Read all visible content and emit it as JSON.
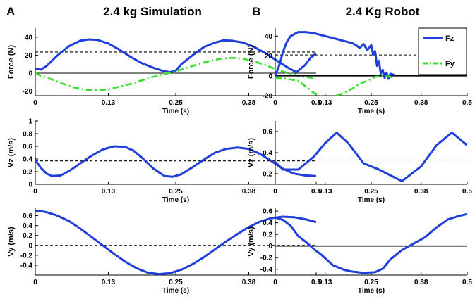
{
  "panels": {
    "a": {
      "letter": "A",
      "title": "2.4 kg Simulation"
    },
    "b": {
      "letter": "B",
      "title": "2.4 Kg Robot"
    }
  },
  "colors": {
    "fz": "#1f3fdc",
    "fy": "#33e02b",
    "ref": "#000000",
    "axis": "#000000"
  },
  "chart_data": [
    {
      "id": "sim-force",
      "type": "line",
      "panel": "A",
      "title": "2.4 kg Simulation",
      "xlabel": "Time (s)",
      "ylabel": "Force (N)",
      "xlim": [
        0,
        0.5
      ],
      "ylim": [
        -25,
        50
      ],
      "xticks": [
        0,
        0.13,
        0.25,
        0.38,
        0.5
      ],
      "xtick_labels": [
        "0",
        "0.13",
        "0.25",
        "0.38",
        "0.5"
      ],
      "yticks": [
        -20,
        0,
        20,
        40
      ],
      "ytick_labels": [
        "-20",
        "0",
        "20",
        "40"
      ],
      "zero_line": true,
      "ref_lines": [
        23.5
      ],
      "series": [
        {
          "name": "",
          "style": "solid",
          "color": "fz",
          "x": [
            0,
            0.01,
            0.02,
            0.04,
            0.06,
            0.08,
            0.095,
            0.11,
            0.13,
            0.15,
            0.17,
            0.19,
            0.21,
            0.225,
            0.24,
            0.25,
            0.26,
            0.28,
            0.3,
            0.32,
            0.335,
            0.35,
            0.37,
            0.39,
            0.41,
            0.43,
            0.45,
            0.465,
            0.48,
            0.49,
            0.5
          ],
          "y": [
            5,
            4,
            8,
            20,
            30,
            36,
            37.5,
            37,
            33,
            26,
            18,
            11,
            6,
            3,
            1,
            3,
            10,
            20,
            29,
            34,
            36.5,
            36,
            34,
            29,
            22,
            14,
            6,
            1,
            9,
            17,
            22
          ]
        },
        {
          "name": "",
          "style": "dashdot",
          "color": "fy",
          "x": [
            0,
            0.01,
            0.03,
            0.05,
            0.07,
            0.09,
            0.11,
            0.13,
            0.15,
            0.17,
            0.19,
            0.21,
            0.23,
            0.25,
            0.27,
            0.29,
            0.31,
            0.33,
            0.35,
            0.37,
            0.39,
            0.41,
            0.43,
            0.45,
            0.47,
            0.49,
            0.5
          ],
          "y": [
            0,
            -3,
            -7,
            -12,
            -16,
            -18.5,
            -19,
            -18,
            -15,
            -12,
            -8,
            -4,
            -1,
            2,
            6,
            10,
            13.5,
            16,
            17,
            16,
            13,
            9,
            4,
            0,
            -3,
            -5,
            -6
          ]
        }
      ]
    },
    {
      "id": "robot-force",
      "type": "line",
      "panel": "B",
      "title": "2.4 Kg Robot",
      "xlabel": "Time (s)",
      "ylabel": "Force (N)",
      "xlim": [
        0,
        0.5
      ],
      "ylim": [
        -20,
        48
      ],
      "xticks": [
        0,
        0.13,
        0.25,
        0.38,
        0.5
      ],
      "xtick_labels": [
        "0",
        "0.13",
        "0.25",
        "0.38",
        "0.5"
      ],
      "yticks": [
        -20,
        0,
        20,
        40
      ],
      "ytick_labels": [
        "-20",
        "0",
        "20",
        "40"
      ],
      "zero_line": true,
      "zero_line_solid": true,
      "ref_lines": [
        21
      ],
      "legend": {
        "position": "top-right",
        "entries": [
          "Fz",
          "Fy"
        ]
      },
      "series": [
        {
          "name": "Fz",
          "style": "solid",
          "color": "fz",
          "x": [
            0,
            0.005,
            0.01,
            0.015,
            0.02,
            0.03,
            0.04,
            0.05,
            0.06,
            0.08,
            0.1,
            0.12,
            0.14,
            0.16,
            0.18,
            0.2,
            0.21,
            0.22,
            0.23,
            0.24,
            0.25,
            0.255,
            0.26,
            0.265,
            0.27,
            0.275,
            0.28,
            0.285,
            0.29,
            0.295,
            0.3,
            0.31
          ],
          "y": [
            0,
            5,
            10,
            17,
            24,
            34,
            40,
            42,
            44,
            44,
            43,
            41,
            39,
            37,
            35,
            33,
            31,
            28,
            32,
            26,
            31,
            21,
            25,
            10,
            15,
            2,
            6,
            -2,
            3,
            -3,
            2,
            1
          ]
        },
        {
          "name": "Fy",
          "style": "dashdot",
          "color": "fy",
          "x": [
            0,
            0.03,
            0.06,
            0.08,
            0.1,
            0.12,
            0.14,
            0.16,
            0.18,
            0.2,
            0.22,
            0.24,
            0.26,
            0.28,
            0.3,
            0.31
          ],
          "y": [
            -2,
            -3,
            -5,
            -11,
            -17,
            -21,
            -22,
            -20,
            -17,
            -13,
            -8,
            -5,
            -1,
            0,
            -1,
            -3
          ]
        }
      ]
    },
    {
      "id": "sim-vz",
      "type": "line",
      "panel": "A",
      "xlabel": "Time (s)",
      "ylabel": "Vz (m/s)",
      "xlim": [
        0,
        0.5
      ],
      "ylim": [
        0,
        1
      ],
      "xticks": [
        0,
        0.13,
        0.25,
        0.38,
        0.5
      ],
      "xtick_labels": [
        "0",
        "0.13",
        "0.25",
        "0.38",
        "0.5"
      ],
      "yticks": [
        0,
        0.2,
        0.4,
        0.6,
        0.8,
        1
      ],
      "ytick_labels": [
        "0",
        "0.2",
        "0.4",
        "0.6",
        "0.8",
        "1"
      ],
      "ref_lines": [
        0.37
      ],
      "series": [
        {
          "name": "",
          "style": "solid",
          "color": "fz",
          "x": [
            0,
            0.01,
            0.02,
            0.03,
            0.045,
            0.06,
            0.08,
            0.1,
            0.12,
            0.14,
            0.16,
            0.175,
            0.19,
            0.21,
            0.23,
            0.245,
            0.26,
            0.28,
            0.3,
            0.32,
            0.34,
            0.36,
            0.38,
            0.4,
            0.42,
            0.44,
            0.46,
            0.48,
            0.5
          ],
          "y": [
            0.38,
            0.26,
            0.17,
            0.13,
            0.14,
            0.21,
            0.33,
            0.45,
            0.55,
            0.6,
            0.59,
            0.53,
            0.42,
            0.25,
            0.13,
            0.12,
            0.16,
            0.27,
            0.39,
            0.5,
            0.56,
            0.58,
            0.56,
            0.48,
            0.37,
            0.25,
            0.17,
            0.14,
            0.13
          ]
        }
      ]
    },
    {
      "id": "robot-vz",
      "type": "line",
      "panel": "B",
      "xlabel": "Time (s)",
      "ylabel": "Vz (m/s)",
      "xlim": [
        0,
        0.5
      ],
      "ylim": [
        0.1,
        0.7
      ],
      "xticks": [
        0,
        0.13,
        0.25,
        0.38,
        0.5
      ],
      "xtick_labels": [
        "0",
        "0.13",
        "0.25",
        "0.38",
        "0.5"
      ],
      "yticks": [
        0.2,
        0.4,
        0.6
      ],
      "ytick_labels": [
        "0.2",
        "0.4",
        "0.6"
      ],
      "ref_lines": [
        0.35
      ],
      "series": [
        {
          "name": "",
          "style": "solid",
          "color": "fz",
          "x": [
            0,
            0.02,
            0.06,
            0.1,
            0.13,
            0.16,
            0.19,
            0.23,
            0.27,
            0.33,
            0.38,
            0.42,
            0.46,
            0.48,
            0.5
          ],
          "y": [
            0.31,
            0.24,
            0.24,
            0.36,
            0.49,
            0.59,
            0.49,
            0.3,
            0.24,
            0.13,
            0.27,
            0.47,
            0.59,
            0.53,
            0.47
          ]
        }
      ]
    },
    {
      "id": "sim-vy",
      "type": "line",
      "panel": "A",
      "xlabel": "Time (s)",
      "ylabel": "Vy (m/s)",
      "xlim": [
        0,
        0.5
      ],
      "ylim": [
        -0.6,
        0.75
      ],
      "xticks": [
        0,
        0.13,
        0.25,
        0.38,
        0.5
      ],
      "xtick_labels": [
        "0",
        "0.13",
        "0.25",
        "0.38",
        "0.5"
      ],
      "yticks": [
        -0.4,
        -0.2,
        0,
        0.2,
        0.4,
        0.6
      ],
      "ytick_labels": [
        "-0.4",
        "-0.2",
        "0",
        "0.2",
        "0.4",
        "0.6"
      ],
      "ref_lines": [
        0
      ],
      "series": [
        {
          "name": "",
          "style": "solid",
          "color": "fz",
          "x": [
            0,
            0.01,
            0.02,
            0.04,
            0.06,
            0.08,
            0.1,
            0.12,
            0.14,
            0.16,
            0.18,
            0.2,
            0.22,
            0.24,
            0.26,
            0.28,
            0.3,
            0.32,
            0.34,
            0.36,
            0.38,
            0.4,
            0.42,
            0.44,
            0.46,
            0.48,
            0.5
          ],
          "y": [
            0.7,
            0.69,
            0.67,
            0.6,
            0.49,
            0.34,
            0.17,
            0.0,
            -0.17,
            -0.33,
            -0.46,
            -0.55,
            -0.58,
            -0.56,
            -0.49,
            -0.38,
            -0.24,
            -0.08,
            0.08,
            0.23,
            0.37,
            0.48,
            0.55,
            0.58,
            0.57,
            0.53,
            0.47
          ]
        }
      ]
    },
    {
      "id": "robot-vy",
      "type": "line",
      "panel": "B",
      "xlabel": "Time (s)",
      "ylabel": "Vy (m/s)",
      "xlim": [
        0,
        0.5
      ],
      "ylim": [
        -0.5,
        0.65
      ],
      "xticks": [
        0,
        0.13,
        0.25,
        0.38,
        0.5
      ],
      "xtick_labels": [
        "0",
        "0.13",
        "0.25",
        "0.38",
        "0.5"
      ],
      "yticks": [
        -0.4,
        -0.2,
        0,
        0.2,
        0.4,
        0.6
      ],
      "ytick_labels": [
        "-0.4",
        "-0.2",
        "0",
        "0.2",
        "0.4",
        "0.6"
      ],
      "ref_lines": [
        0
      ],
      "ref_solid": true,
      "series": [
        {
          "name": "",
          "style": "solid",
          "color": "fz",
          "x": [
            0,
            0.02,
            0.04,
            0.06,
            0.08,
            0.1,
            0.12,
            0.15,
            0.18,
            0.2,
            0.23,
            0.26,
            0.28,
            0.3,
            0.33,
            0.36,
            0.39,
            0.42,
            0.45,
            0.48,
            0.5
          ],
          "y": [
            0.49,
            0.45,
            0.35,
            0.17,
            0.07,
            -0.05,
            -0.15,
            -0.33,
            -0.41,
            -0.44,
            -0.46,
            -0.45,
            -0.39,
            -0.23,
            -0.07,
            0.04,
            0.15,
            0.32,
            0.46,
            0.52,
            0.55
          ]
        }
      ]
    }
  ]
}
